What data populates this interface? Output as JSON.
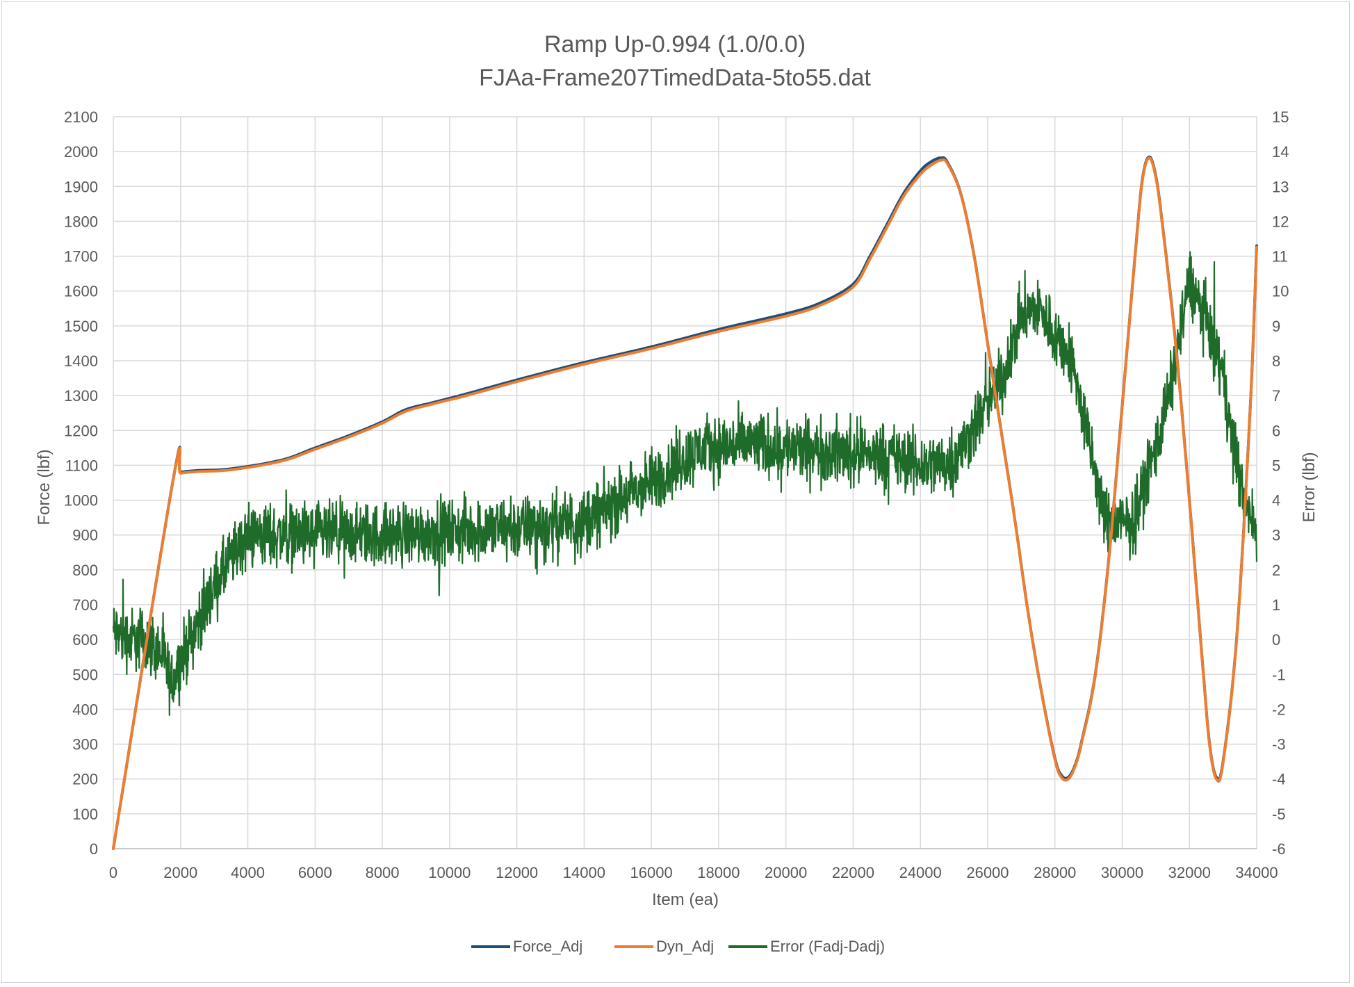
{
  "chart_data": {
    "type": "line",
    "title": "Ramp Up-0.994 (1.0/0.0)",
    "subtitle": "FJAa-Frame207TimedData-5to55.dat",
    "xlabel": "Item (ea)",
    "ylabel": "Force (lbf)",
    "y2label": "Error (lbf)",
    "xlim": [
      0,
      34000
    ],
    "ylim": [
      0,
      2100
    ],
    "y2lim": [
      -6,
      15
    ],
    "x_ticks": [
      "0",
      "2000",
      "4000",
      "6000",
      "8000",
      "10000",
      "12000",
      "14000",
      "16000",
      "18000",
      "20000",
      "22000",
      "24000",
      "26000",
      "28000",
      "30000",
      "32000",
      "34000"
    ],
    "y_ticks": [
      "0",
      "100",
      "200",
      "300",
      "400",
      "500",
      "600",
      "700",
      "800",
      "900",
      "1000",
      "1100",
      "1200",
      "1300",
      "1400",
      "1500",
      "1600",
      "1700",
      "1800",
      "1900",
      "2000",
      "2100"
    ],
    "y2_ticks": [
      "-6",
      "-5",
      "-4",
      "-3",
      "-2",
      "-1",
      "0",
      "1",
      "2",
      "3",
      "4",
      "5",
      "6",
      "7",
      "8",
      "9",
      "10",
      "11",
      "12",
      "13",
      "14",
      "15"
    ],
    "grid": true,
    "legend_position": "bottom",
    "series": [
      {
        "name": "Force_Adj",
        "axis": "left",
        "color": "#1f4e79",
        "x": [
          0,
          1800,
          2000,
          2500,
          3500,
          5000,
          6000,
          7000,
          8000,
          8700,
          9500,
          10500,
          12000,
          14000,
          16000,
          18000,
          20000,
          21000,
          22000,
          22500,
          23000,
          23500,
          24000,
          24300,
          24600,
          24800,
          25200,
          25600,
          26000,
          26400,
          26800,
          27200,
          27600,
          28000,
          28200,
          28400,
          28600,
          28800,
          29200,
          29600,
          30000,
          30400,
          30600,
          30800,
          31000,
          31200,
          31600,
          32000,
          32400,
          32600,
          32800,
          33000,
          33400,
          33800,
          34000
        ],
        "values": [
          0,
          1070,
          1080,
          1085,
          1090,
          1115,
          1150,
          1185,
          1225,
          1260,
          1280,
          1305,
          1345,
          1395,
          1440,
          1490,
          1535,
          1565,
          1620,
          1700,
          1790,
          1880,
          1945,
          1970,
          1982,
          1970,
          1880,
          1700,
          1450,
          1200,
          950,
          680,
          450,
          260,
          210,
          205,
          240,
          310,
          500,
          830,
          1270,
          1720,
          1920,
          1985,
          1930,
          1790,
          1440,
          1000,
          520,
          300,
          205,
          250,
          600,
          1250,
          1730
        ]
      },
      {
        "name": "Dyn_Adj",
        "axis": "left",
        "color": "#ed7d31",
        "x": [
          0,
          1800,
          2000,
          2500,
          3500,
          5000,
          6000,
          7000,
          8000,
          8700,
          9500,
          10500,
          12000,
          14000,
          16000,
          18000,
          20000,
          21000,
          22000,
          22500,
          23000,
          23500,
          24000,
          24300,
          24600,
          24800,
          25200,
          25600,
          26000,
          26400,
          26800,
          27200,
          27600,
          28000,
          28200,
          28400,
          28600,
          28800,
          29200,
          29600,
          30000,
          30400,
          30600,
          30800,
          31000,
          31200,
          31600,
          32000,
          32400,
          32600,
          32800,
          33000,
          33400,
          33800,
          34000
        ],
        "values": [
          0,
          1068,
          1077,
          1082,
          1087,
          1112,
          1146,
          1181,
          1221,
          1255,
          1276,
          1300,
          1340,
          1390,
          1435,
          1484,
          1528,
          1558,
          1612,
          1692,
          1782,
          1872,
          1935,
          1960,
          1975,
          1966,
          1878,
          1698,
          1448,
          1198,
          948,
          678,
          448,
          256,
          204,
          200,
          236,
          306,
          496,
          826,
          1266,
          1716,
          1916,
          1982,
          1926,
          1786,
          1436,
          996,
          516,
          296,
          200,
          246,
          596,
          1246,
          1726
        ]
      },
      {
        "name": "Error (Fadj-Dadj)",
        "axis": "right",
        "color": "#1e6b2a",
        "noise_amplitude": 0.45,
        "x": [
          0,
          500,
          1000,
          1500,
          1700,
          2000,
          3000,
          3500,
          4000,
          6000,
          8000,
          10000,
          12000,
          14000,
          16000,
          17500,
          19000,
          21000,
          23000,
          24000,
          25000,
          26000,
          26500,
          27000,
          27500,
          28500,
          29500,
          30300,
          31000,
          31500,
          32000,
          32500,
          33000,
          33500,
          34000
        ],
        "values": [
          0.2,
          0.0,
          0.0,
          -0.5,
          -1.3,
          -0.6,
          1.5,
          2.3,
          3.0,
          3.0,
          3.0,
          3.1,
          3.2,
          3.4,
          4.5,
          5.5,
          5.6,
          5.4,
          5.3,
          5.0,
          5.1,
          6.8,
          7.6,
          9.3,
          9.5,
          8.0,
          3.4,
          3.3,
          5.5,
          7.5,
          10.3,
          9.2,
          7.5,
          4.5,
          3.0
        ]
      }
    ]
  }
}
